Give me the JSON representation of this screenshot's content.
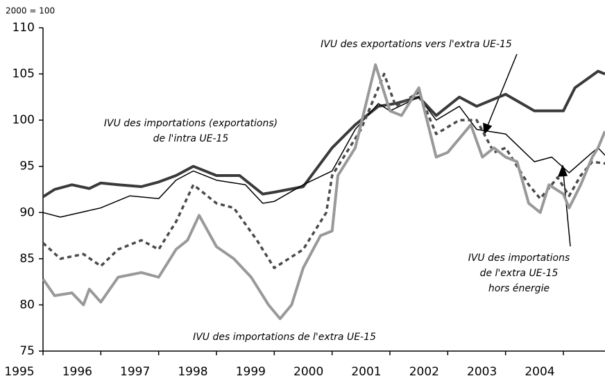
{
  "chart_data": {
    "type": "line",
    "subtitle": "2000 = 100",
    "xlim": [
      1995,
      2004.72
    ],
    "xticks": [
      1995,
      1996,
      1997,
      1998,
      1999,
      2000,
      2001,
      2002,
      2003,
      2004
    ],
    "ylim": [
      75,
      110
    ],
    "yticks": [
      75,
      80,
      85,
      90,
      95,
      100,
      105,
      110
    ],
    "series": [
      {
        "color": "#3a3a3a",
        "width": 4,
        "dash": "none",
        "x": [
          1995,
          1995.2,
          1995.5,
          1995.8,
          1996,
          1996.3,
          1996.7,
          1997,
          1997.3,
          1997.6,
          1998,
          1998.4,
          1998.8,
          1999,
          1999.5,
          2000,
          2000.4,
          2000.8,
          2001.1,
          2001.5,
          2001.8,
          2002.2,
          2002.5,
          2003,
          2003.5,
          2004,
          2004.2,
          2004.6,
          2004.72
        ],
        "values": [
          91.7,
          92.5,
          93,
          92.6,
          93.2,
          93,
          92.8,
          93.3,
          94,
          95,
          94,
          94,
          92,
          92.2,
          92.8,
          97,
          99.5,
          101.5,
          101.8,
          102.5,
          100.5,
          102.5,
          101.5,
          102.8,
          101,
          101,
          103.5,
          105.3,
          105
        ]
      },
      {
        "color": "#000000",
        "width": 1.5,
        "dash": "none",
        "x": [
          1995,
          1995.3,
          1996,
          1996.5,
          1997,
          1997.3,
          1997.6,
          1998,
          1998.5,
          1998.8,
          1999,
          1999.5,
          2000,
          2000.4,
          2000.8,
          2001,
          2001.5,
          2001.8,
          2002.2,
          2002.5,
          2003,
          2003.5,
          2003.8,
          2004.1,
          2004.5,
          2004.6,
          2004.72
        ],
        "values": [
          90,
          89.5,
          90.5,
          91.8,
          91.5,
          93.5,
          94.5,
          93.5,
          93,
          91,
          91.2,
          93,
          94.5,
          99,
          101.8,
          101,
          102.5,
          100,
          101.5,
          99,
          98.5,
          95.5,
          96,
          94.3,
          96.5,
          97,
          96.2
        ]
      },
      {
        "color": "#4a4a4a",
        "width": 3.5,
        "dash": "6,5",
        "x": [
          1995,
          1995.3,
          1995.7,
          1996,
          1996.3,
          1996.7,
          1997,
          1997.3,
          1997.6,
          1998,
          1998.3,
          1998.7,
          1999,
          1999.5,
          1999.9,
          2000,
          2000.5,
          2000.9,
          2001.1,
          2001.5,
          2001.8,
          2002.2,
          2002.5,
          2002.8,
          2003,
          2003.4,
          2003.6,
          2003.9,
          2004.1,
          2004.3,
          2004.5,
          2004.72
        ],
        "values": [
          86.7,
          85,
          85.5,
          84.2,
          86,
          87,
          86,
          89,
          93,
          91,
          90.5,
          87,
          84,
          86,
          90,
          94,
          99,
          105,
          101.5,
          103,
          98.5,
          100,
          100,
          96.5,
          97,
          93,
          91.5,
          93.8,
          91.8,
          94,
          95.5,
          95.3
        ]
      },
      {
        "color": "#999999",
        "width": 4,
        "dash": "none",
        "x": [
          1995,
          1995.2,
          1995.5,
          1995.7,
          1995.8,
          1996,
          1996.3,
          1996.7,
          1997,
          1997.3,
          1997.5,
          1997.7,
          1998,
          1998.3,
          1998.6,
          1998.9,
          1999.1,
          1999.3,
          1999.5,
          1999.8,
          2000,
          2000.1,
          2000.4,
          2000.75,
          2001,
          2001.2,
          2001.5,
          2001.8,
          2002,
          2002.4,
          2002.6,
          2002.8,
          2003,
          2003.2,
          2003.4,
          2003.6,
          2003.75,
          2004,
          2004.1,
          2004.3,
          2004.5,
          2004.6,
          2004.72
        ],
        "values": [
          82.8,
          81,
          81.3,
          80,
          81.7,
          80.3,
          83,
          83.5,
          83,
          86,
          87,
          89.7,
          86.3,
          85,
          83,
          80,
          78.5,
          80,
          84,
          87.5,
          88,
          94,
          97,
          106,
          101,
          100.5,
          103.5,
          96,
          96.5,
          99.5,
          96,
          97,
          96,
          95.5,
          91,
          90,
          93,
          92,
          90.5,
          93,
          96,
          97,
          98.8
        ]
      }
    ],
    "annotations": [
      {
        "lines": [
          "IVU des exportations vers l'extra UE-15"
        ]
      },
      {
        "lines": [
          "IVU des importations (exportations)",
          "de l'intra UE-15"
        ]
      },
      {
        "lines": [
          "IVU des importations",
          "de l'extra UE-15",
          "hors énergie"
        ]
      },
      {
        "lines": [
          "IVU des importations de l'extra UE-15"
        ]
      }
    ]
  }
}
